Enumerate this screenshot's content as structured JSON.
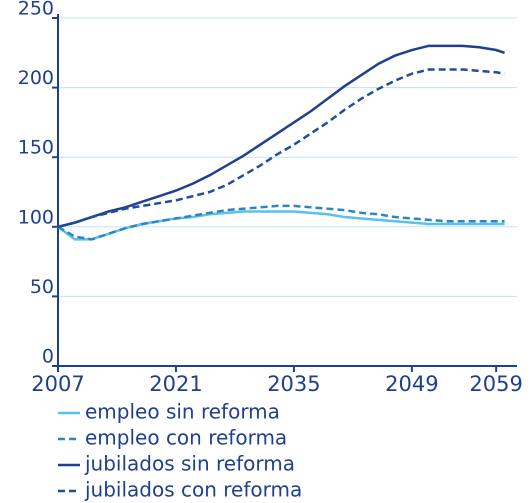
{
  "chart_data": {
    "type": "line",
    "x": [
      2007,
      2009,
      2011,
      2013,
      2015,
      2017,
      2019,
      2021,
      2023,
      2025,
      2027,
      2029,
      2031,
      2033,
      2035,
      2037,
      2039,
      2041,
      2043,
      2045,
      2047,
      2049,
      2051,
      2053,
      2055,
      2057,
      2059,
      2060
    ],
    "series": [
      {
        "name": "empleo sin reforma",
        "color": "#5bc0eb",
        "style": "solid",
        "values": [
          100,
          91,
          91,
          95,
          99,
          102,
          104,
          106,
          107,
          109,
          110,
          111,
          111,
          111,
          111,
          110,
          109,
          107,
          106,
          105,
          104,
          103,
          102,
          102,
          102,
          102,
          102,
          102
        ]
      },
      {
        "name": "empleo con reforma",
        "color": "#2e86c1",
        "style": "dashed",
        "values": [
          100,
          93,
          91,
          95,
          99,
          102,
          104,
          106,
          108,
          110,
          112,
          113,
          114,
          115,
          115,
          114,
          113,
          112,
          110,
          109,
          107,
          106,
          105,
          104,
          104,
          104,
          104,
          104
        ]
      },
      {
        "name": "jubilados sin reforma",
        "color": "#1f3f8f",
        "style": "solid",
        "values": [
          100,
          103,
          107,
          111,
          114,
          118,
          122,
          126,
          131,
          137,
          144,
          151,
          159,
          167,
          175,
          183,
          192,
          201,
          209,
          217,
          223,
          227,
          230,
          230,
          230,
          229,
          227,
          225
        ]
      },
      {
        "name": "jubilados con reforma",
        "color": "#1f4e9c",
        "style": "dashed",
        "values": [
          100,
          103,
          107,
          110,
          113,
          115,
          117,
          119,
          122,
          125,
          130,
          137,
          144,
          152,
          159,
          167,
          175,
          184,
          192,
          199,
          205,
          210,
          213,
          213,
          213,
          212,
          211,
          210
        ]
      }
    ],
    "xlim": [
      2007,
      2061
    ],
    "xticks": [
      2007,
      2021,
      2035,
      2049,
      2059
    ],
    "ylim": [
      0,
      250
    ],
    "yticks": [
      0,
      50,
      100,
      150,
      200,
      250
    ],
    "grid": true
  }
}
